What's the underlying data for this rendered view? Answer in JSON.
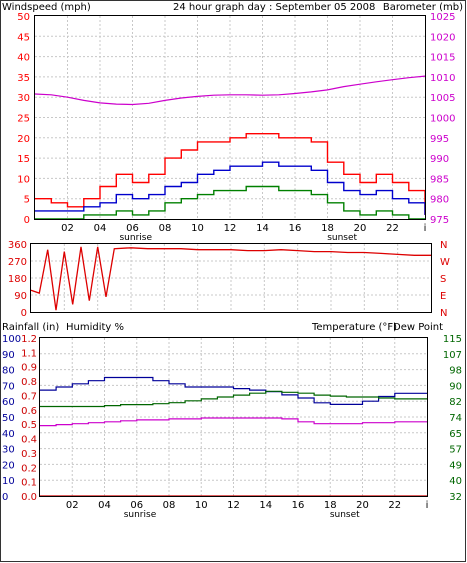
{
  "colors": {
    "wind_max": "#ff0000",
    "wind_avg": "#0000cc",
    "wind_min": "#008000",
    "barometer": "#cc00cc",
    "direction": "#dd0000",
    "rain": "#cc0000",
    "humidity": "#000099",
    "temperature": "#006600",
    "dewpoint": "#cc00cc",
    "grid": "#c8c8c8"
  },
  "chart_data": [
    {
      "type": "line",
      "title": "24 hour graph day : September 05 2008",
      "ylabel_left": "Windspeed (mph)",
      "ylabel_right": "Barometer (mb)",
      "x_ticks": [
        "02",
        "04",
        "06",
        "08",
        "10",
        "12",
        "14",
        "16",
        "18",
        "20",
        "22",
        "i"
      ],
      "x_markers": [
        {
          "label": "sunrise",
          "x": 6.2
        },
        {
          "label": "sunset",
          "x": 18.9
        }
      ],
      "x_range": [
        0,
        24
      ],
      "ylim_left": [
        0,
        50
      ],
      "y_ticks_left": [
        "0",
        "5",
        "10",
        "15",
        "20",
        "25",
        "30",
        "35",
        "40",
        "45",
        "50"
      ],
      "ylim_right": [
        975,
        1025
      ],
      "y_ticks_right": [
        "975",
        "980",
        "985",
        "990",
        "995",
        "1000",
        "1005",
        "1010",
        "1015",
        "1020",
        "1025"
      ],
      "grid": true,
      "series": [
        {
          "role": "wind_max",
          "axis": "left",
          "x": [
            0,
            1,
            2,
            3,
            4,
            5,
            6,
            7,
            8,
            9,
            10,
            11,
            12,
            13,
            14,
            15,
            16,
            17,
            18,
            19,
            20,
            21,
            22,
            23,
            24
          ],
          "values": [
            5,
            4,
            3,
            5,
            8,
            11,
            9,
            11,
            15,
            17,
            19,
            19,
            20,
            21,
            21,
            20,
            20,
            19,
            14,
            11,
            9,
            11,
            9,
            7,
            1
          ]
        },
        {
          "role": "wind_avg",
          "axis": "left",
          "x": [
            0,
            1,
            2,
            3,
            4,
            5,
            6,
            7,
            8,
            9,
            10,
            11,
            12,
            13,
            14,
            15,
            16,
            17,
            18,
            19,
            20,
            21,
            22,
            23,
            24
          ],
          "values": [
            2,
            2,
            2,
            3,
            4,
            6,
            5,
            6,
            8,
            9,
            11,
            12,
            13,
            13,
            14,
            13,
            13,
            12,
            9,
            7,
            6,
            7,
            5,
            4,
            1
          ]
        },
        {
          "role": "wind_min",
          "axis": "left",
          "x": [
            0,
            1,
            2,
            3,
            4,
            5,
            6,
            7,
            8,
            9,
            10,
            11,
            12,
            13,
            14,
            15,
            16,
            17,
            18,
            19,
            20,
            21,
            22,
            23,
            24
          ],
          "values": [
            0,
            0,
            0,
            1,
            1,
            2,
            1,
            2,
            4,
            5,
            6,
            7,
            7,
            8,
            8,
            7,
            7,
            6,
            4,
            2,
            1,
            2,
            1,
            0,
            0
          ]
        },
        {
          "role": "barometer",
          "axis": "right",
          "x": [
            0,
            1,
            2,
            3,
            4,
            5,
            6,
            7,
            8,
            9,
            10,
            11,
            12,
            13,
            14,
            15,
            16,
            17,
            18,
            19,
            20,
            21,
            22,
            23,
            24
          ],
          "values": [
            1005.8,
            1005.6,
            1005.0,
            1004.2,
            1003.6,
            1003.3,
            1003.2,
            1003.5,
            1004.2,
            1004.8,
            1005.2,
            1005.5,
            1005.6,
            1005.6,
            1005.5,
            1005.6,
            1005.9,
            1006.3,
            1006.8,
            1007.6,
            1008.2,
            1008.8,
            1009.3,
            1009.8,
            1010.2
          ]
        }
      ]
    },
    {
      "type": "scatter",
      "ylabel_right": [
        "N",
        "W",
        "S",
        "E",
        "N"
      ],
      "x_range": [
        0,
        24
      ],
      "ylim": [
        0,
        360
      ],
      "y_ticks": [
        "0",
        "90",
        "180",
        "270",
        "360"
      ],
      "grid": true,
      "series": [
        {
          "role": "direction",
          "x": [
            0,
            0.5,
            1,
            1.5,
            2,
            2.5,
            3,
            3.5,
            4,
            4.5,
            5,
            6,
            7,
            8,
            9,
            10,
            11,
            12,
            13,
            14,
            15,
            16,
            17,
            18,
            19,
            20,
            21,
            22,
            23,
            24
          ],
          "values": [
            115,
            100,
            330,
            10,
            320,
            40,
            345,
            60,
            345,
            80,
            335,
            340,
            335,
            335,
            335,
            330,
            330,
            330,
            325,
            325,
            330,
            325,
            320,
            320,
            315,
            315,
            310,
            305,
            300,
            300
          ]
        }
      ]
    },
    {
      "type": "line",
      "ylabel_left": "Rainfall (in)",
      "ylabel_left2": "Humidity %",
      "ylabel_right": "Temperature (°F)",
      "ylabel_right2": "Dew Point",
      "x_ticks": [
        "02",
        "04",
        "06",
        "08",
        "10",
        "12",
        "14",
        "16",
        "18",
        "20",
        "22",
        "i"
      ],
      "x_markers": [
        {
          "label": "sunrise",
          "x": 6.2
        },
        {
          "label": "sunset",
          "x": 18.9
        }
      ],
      "x_range": [
        0,
        24
      ],
      "ylim_humidity": [
        0,
        100
      ],
      "y_ticks_humidity": [
        "0",
        "10",
        "20",
        "30",
        "40",
        "50",
        "60",
        "70",
        "80",
        "90",
        "100"
      ],
      "ylim_rain": [
        0,
        1.2
      ],
      "y_ticks_rain": [
        "0.0",
        "0.1",
        "0.2",
        "0.3",
        "0.4",
        "0.5",
        "0.6",
        "0.7",
        "0.8",
        "0.9",
        "1.1",
        "1.2"
      ],
      "ylim_temp": [
        32,
        115
      ],
      "y_ticks_temp": [
        "32",
        "40",
        "49",
        "57",
        "65",
        "74",
        "82",
        "90",
        "98",
        "107",
        "115"
      ],
      "grid": true,
      "series": [
        {
          "role": "rain",
          "axis": "rain",
          "x": [
            0,
            24
          ],
          "values": [
            0.0,
            0.0
          ]
        },
        {
          "role": "humidity",
          "axis": "humidity",
          "x": [
            0,
            1,
            2,
            3,
            4,
            5,
            6,
            7,
            8,
            9,
            10,
            11,
            12,
            13,
            14,
            15,
            16,
            17,
            18,
            19,
            20,
            21,
            22,
            23,
            24
          ],
          "values": [
            67,
            69,
            71,
            73,
            75,
            75,
            75,
            73,
            71,
            69,
            69,
            69,
            68,
            67,
            66,
            64,
            62,
            59,
            58,
            58,
            60,
            63,
            65,
            65,
            65
          ]
        },
        {
          "role": "temperature",
          "axis": "temp",
          "x": [
            0,
            1,
            2,
            3,
            4,
            5,
            6,
            7,
            8,
            9,
            10,
            11,
            12,
            13,
            14,
            15,
            16,
            17,
            18,
            19,
            20,
            21,
            22,
            23,
            24
          ],
          "values": [
            79,
            79,
            79,
            79,
            79.5,
            80,
            80,
            80.5,
            81,
            82,
            83,
            84,
            85,
            86,
            87,
            86.5,
            86,
            85,
            84.5,
            84,
            84,
            83.5,
            83,
            83,
            83
          ]
        },
        {
          "role": "dewpoint",
          "axis": "temp",
          "x": [
            0,
            1,
            2,
            3,
            4,
            5,
            6,
            7,
            8,
            9,
            10,
            11,
            12,
            13,
            14,
            15,
            16,
            17,
            18,
            19,
            20,
            21,
            22,
            23,
            24
          ],
          "values": [
            69,
            69.5,
            70,
            70.5,
            71,
            71.5,
            72,
            72,
            72.5,
            72.5,
            73,
            73,
            73,
            73,
            73,
            72.5,
            71,
            70,
            70,
            70,
            70.5,
            70.5,
            71,
            71,
            71
          ]
        }
      ]
    }
  ]
}
